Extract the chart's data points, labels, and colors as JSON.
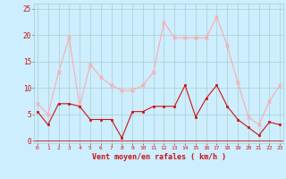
{
  "hours": [
    0,
    1,
    2,
    3,
    4,
    5,
    6,
    7,
    8,
    9,
    10,
    11,
    12,
    13,
    14,
    15,
    16,
    17,
    18,
    19,
    20,
    21,
    22,
    23
  ],
  "vent_moyen": [
    5.5,
    3,
    7,
    7,
    6.5,
    4,
    4,
    4,
    0.5,
    5.5,
    5.5,
    6.5,
    6.5,
    6.5,
    10.5,
    4.5,
    8,
    10.5,
    6.5,
    4,
    2.5,
    1,
    3.5,
    3
  ],
  "rafales": [
    7,
    5,
    13,
    19.5,
    6.5,
    14.5,
    12,
    10.5,
    9.5,
    9.5,
    10.5,
    13,
    22.5,
    19.5,
    19.5,
    19.5,
    19.5,
    23.5,
    18,
    11,
    4.5,
    3,
    7.5,
    10.5
  ],
  "line_moyen_color": "#cc1111",
  "line_rafales_color": "#ffaaaa",
  "bg_color": "#cceeff",
  "grid_color": "#aacccc",
  "xlabel": "Vent moyen/en rafales ( km/h )",
  "xlabel_color": "#cc1111",
  "tick_color": "#cc1111",
  "yticks": [
    0,
    5,
    10,
    15,
    20,
    25
  ],
  "ylim": [
    -0.5,
    26
  ],
  "xlim": [
    -0.3,
    23.3
  ]
}
